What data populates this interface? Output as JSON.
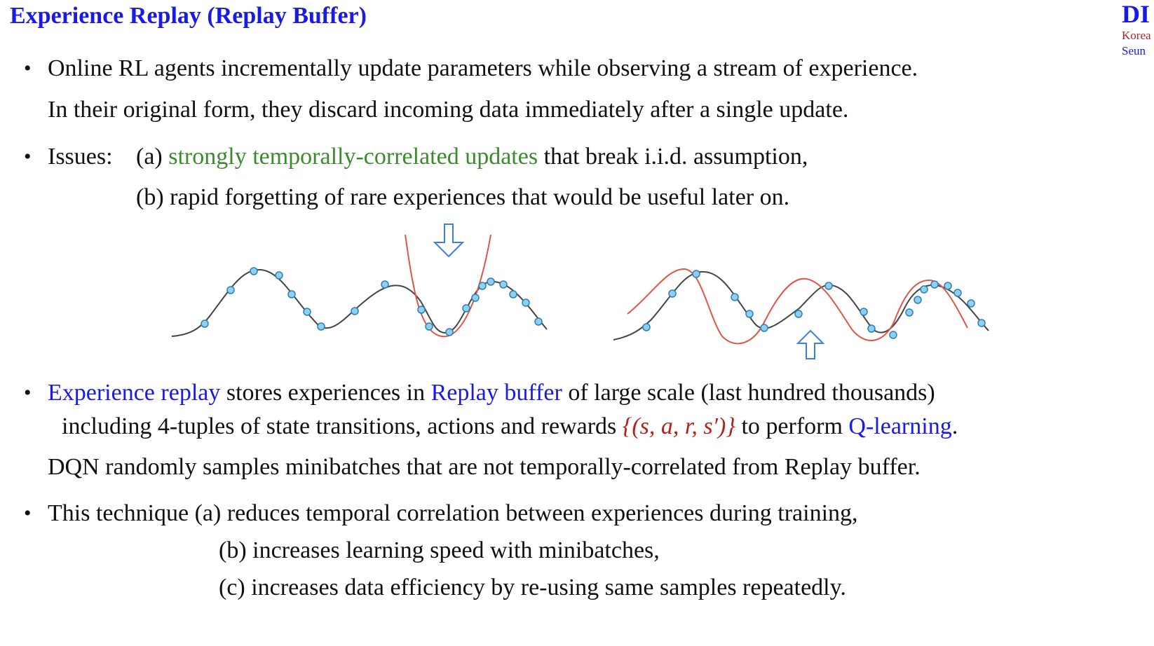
{
  "title": "Experience Replay (Replay Buffer)",
  "logo": {
    "main": "DI",
    "line1": "Korea",
    "line2": "Seun"
  },
  "bullets": {
    "b1_l1": "Online RL agents incrementally update parameters while observing a stream of experience.",
    "b1_l2": "In their original form, they discard incoming data immediately after a single update.",
    "b2_label": "Issues:",
    "b2_a_prefix": "(a) ",
    "b2_a_green": "strongly temporally-correlated updates",
    "b2_a_suffix": " that break i.i.d. assumption,",
    "b2_b": "(b) rapid forgetting of rare experiences that would be useful later on.",
    "b3_blue1": "Experience replay",
    "b3_mid1": " stores experiences in ",
    "b3_blue2": "Replay buffer",
    "b3_mid2": " of large scale (last hundred thousands)",
    "b3_l2_pre": "including 4-tuples of state transitions, actions and rewards ",
    "b3_tuple": "{(s, a, r, s′)}",
    "b3_l2_mid": " to perform ",
    "b3_blue3": "Q-learning",
    "b3_l2_end": ".",
    "b3_l3": "DQN randomly samples minibatches that are not temporally-correlated from Replay buffer.",
    "b4_l1": "This technique (a) reduces temporal correlation between experiences during training,",
    "b4_l2": "(b) increases learning speed with minibatches,",
    "b4_l3": "(c) increases data efficiency by re-using same samples repeatedly."
  },
  "colors": {
    "title": "#1a1ae6",
    "green": "#3c8a2e",
    "red": "#b22222",
    "point": "#8fd0f0",
    "arrow": "#3a7ee8"
  },
  "figure": {
    "curve_color": "#444444",
    "fit_color": "#e05545"
  }
}
